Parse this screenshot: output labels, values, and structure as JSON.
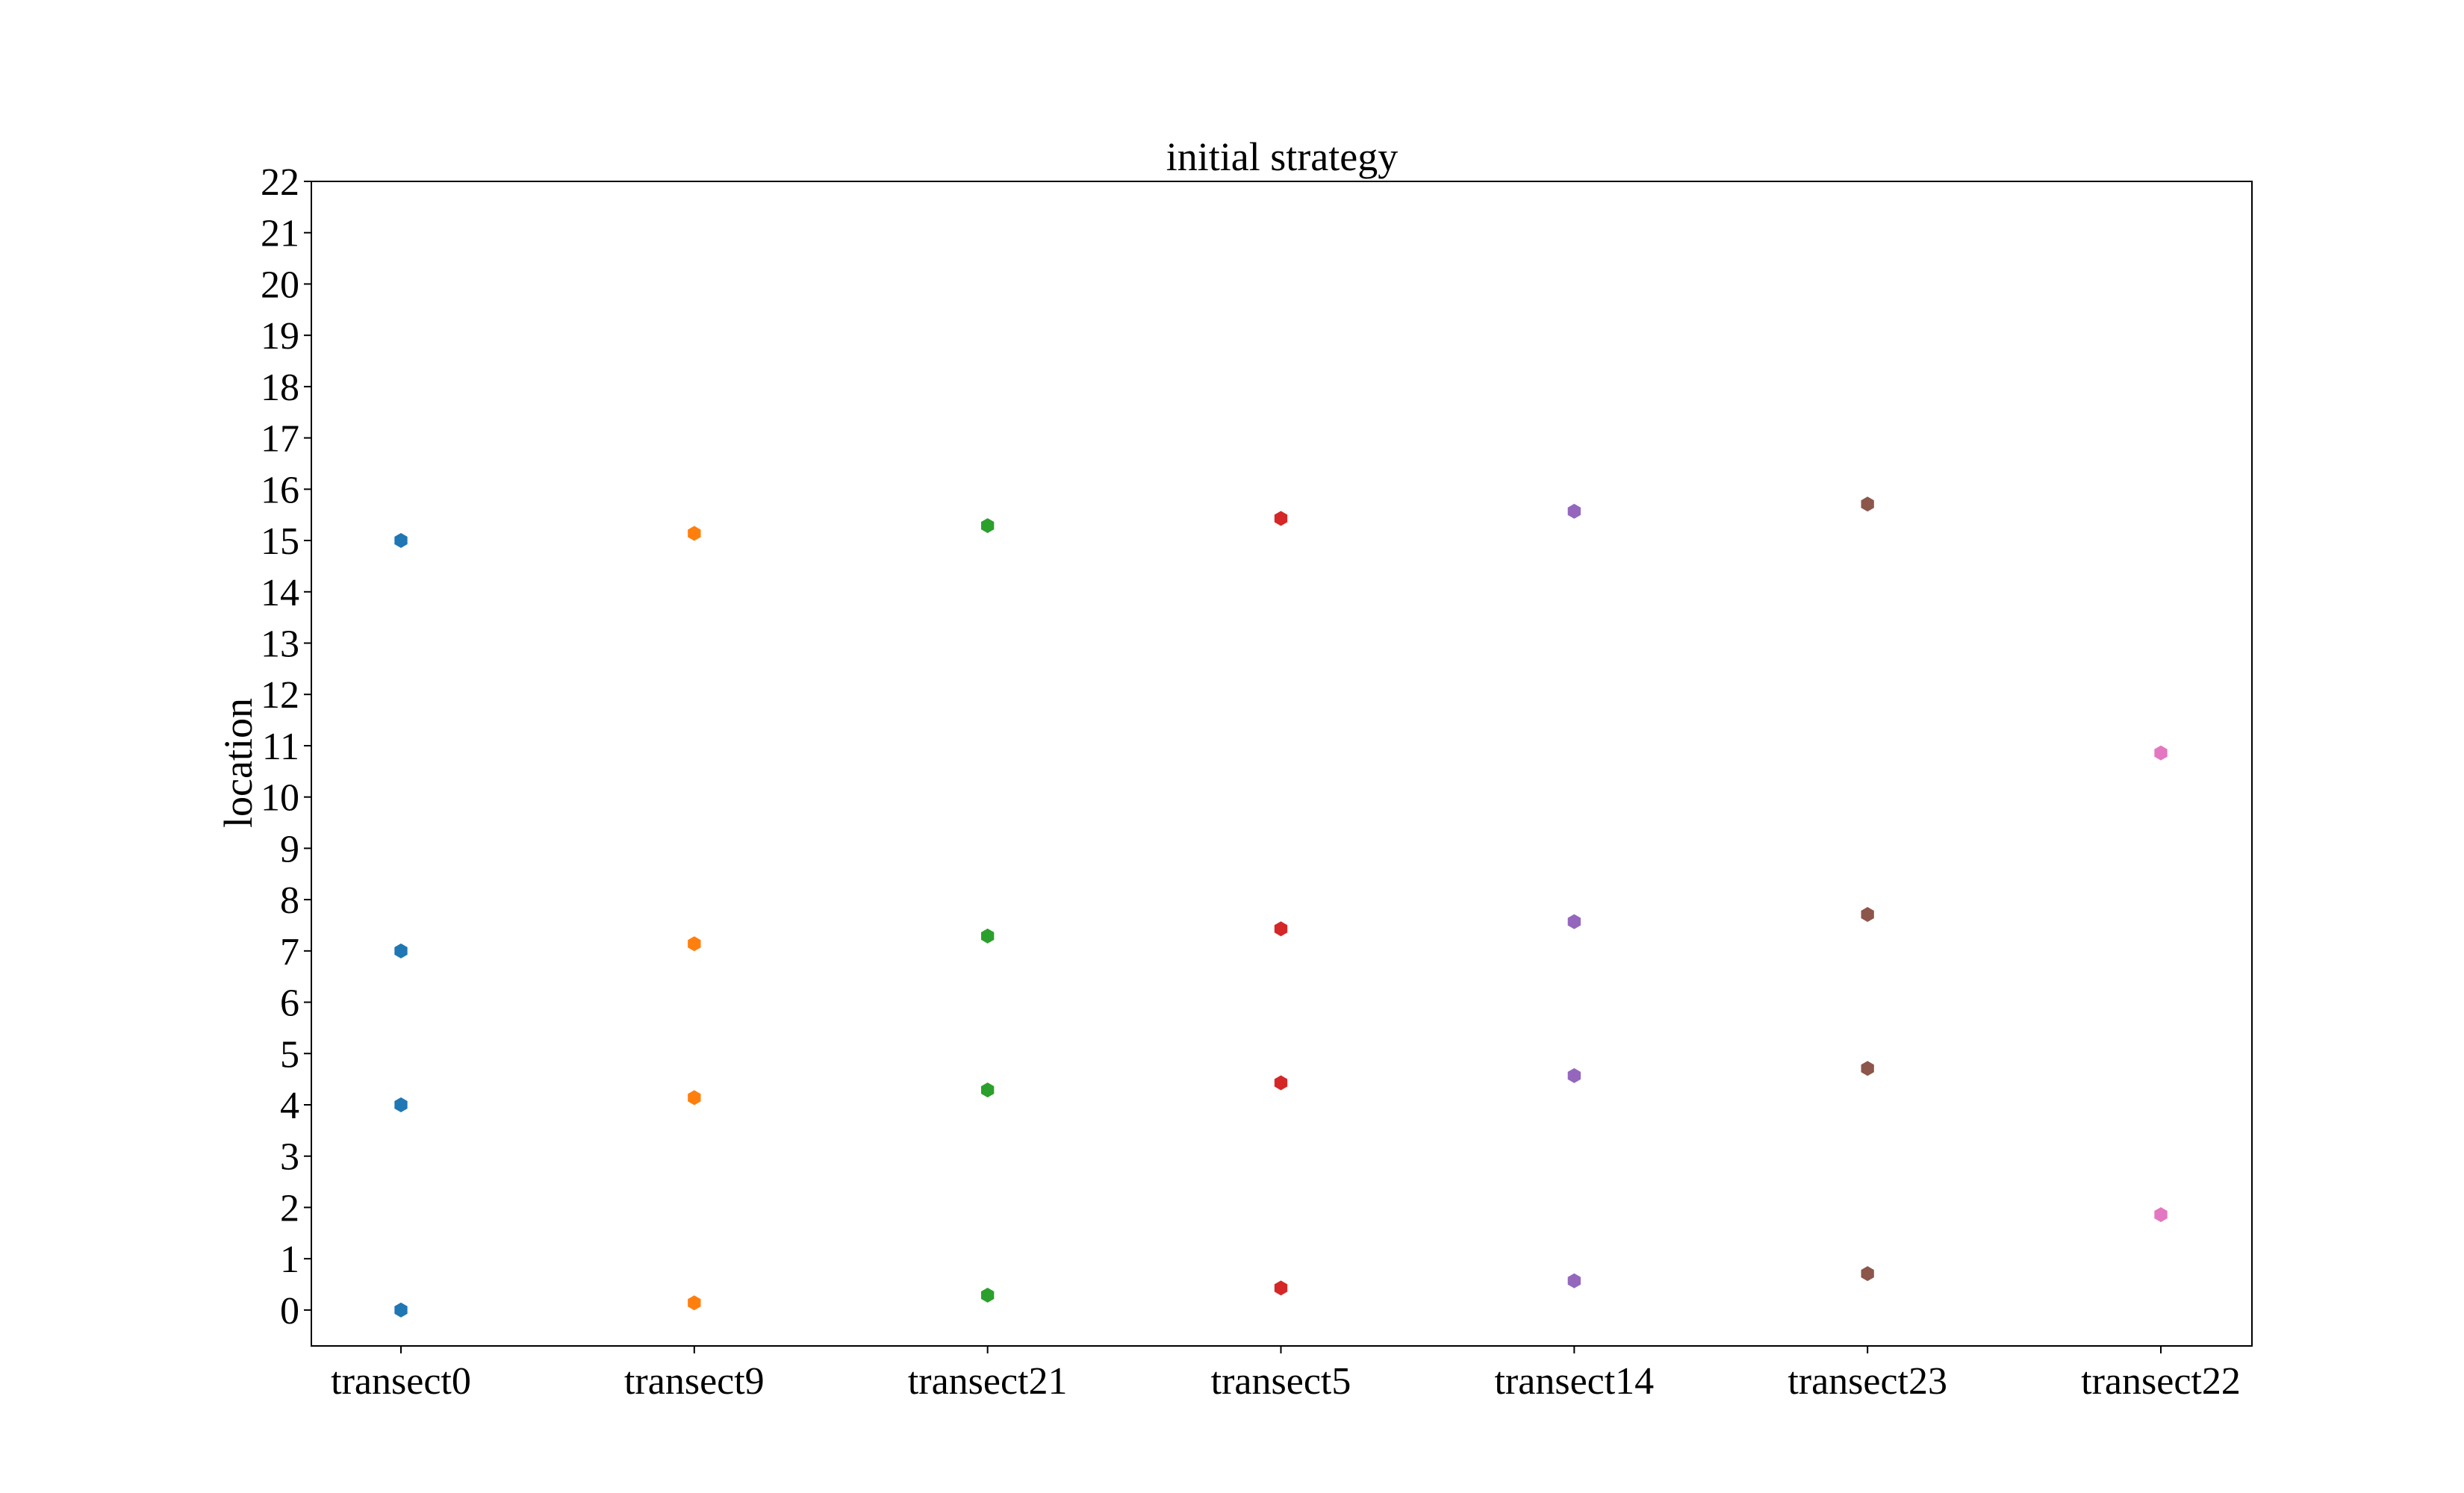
{
  "chart_data": {
    "type": "scatter",
    "title": "initial strategy",
    "xlabel": "",
    "ylabel": "location",
    "categories": [
      "transect0",
      "transect9",
      "transect21",
      "transect5",
      "transect14",
      "transect23",
      "transect22"
    ],
    "ylim": [
      -0.7,
      22
    ],
    "yticks": [
      0,
      1,
      2,
      3,
      4,
      5,
      6,
      7,
      8,
      9,
      10,
      11,
      12,
      13,
      14,
      15,
      16,
      17,
      18,
      19,
      20,
      21,
      22
    ],
    "grid": false,
    "series": [
      {
        "category": "transect0",
        "color": "#1f77b4",
        "values": [
          0,
          4,
          7,
          15
        ]
      },
      {
        "category": "transect9",
        "color": "#ff7f0e",
        "values": [
          0.14,
          4.14,
          7.14,
          15.14
        ]
      },
      {
        "category": "transect21",
        "color": "#2ca02c",
        "values": [
          0.29,
          4.29,
          7.29,
          15.29
        ]
      },
      {
        "category": "transect5",
        "color": "#d62728",
        "values": [
          0.43,
          4.43,
          7.43,
          15.43
        ]
      },
      {
        "category": "transect14",
        "color": "#9467bd",
        "values": [
          0.57,
          4.57,
          7.57,
          15.57
        ]
      },
      {
        "category": "transect23",
        "color": "#8c564b",
        "values": [
          0.71,
          4.71,
          7.71,
          15.71
        ]
      },
      {
        "category": "transect22",
        "color": "#e377c2",
        "values": [
          1.86,
          10.86
        ]
      }
    ]
  }
}
